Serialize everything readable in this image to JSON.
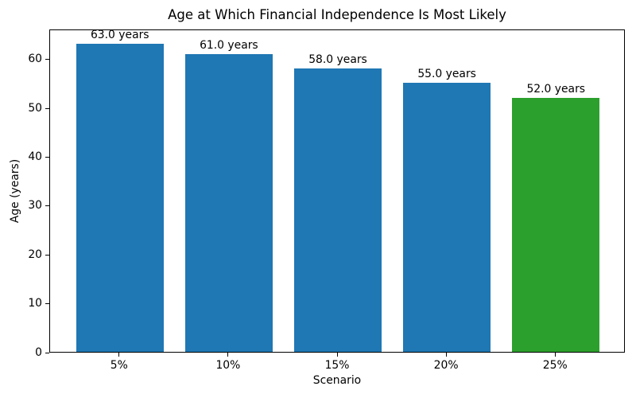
{
  "chart_data": {
    "type": "bar",
    "title": "Age at Which Financial Independence Is Most Likely",
    "xlabel": "Scenario",
    "ylabel": "Age (years)",
    "categories": [
      "5%",
      "10%",
      "15%",
      "20%",
      "25%"
    ],
    "values": [
      63.0,
      61.0,
      58.0,
      55.0,
      52.0
    ],
    "bar_labels": [
      "63.0 years",
      "61.0 years",
      "58.0 years",
      "55.0 years",
      "52.0 years"
    ],
    "bar_colors": [
      "#1f77b4",
      "#1f77b4",
      "#1f77b4",
      "#1f77b4",
      "#2ca02c"
    ],
    "yticks": [
      0,
      10,
      20,
      30,
      40,
      50,
      60
    ],
    "ylim": [
      0,
      66.15
    ],
    "grid": false,
    "legend": "none",
    "background": "#ffffff",
    "spine_color": "#000000"
  }
}
